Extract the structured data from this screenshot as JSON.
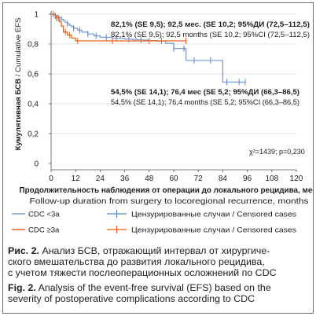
{
  "chart_data": {
    "type": "line",
    "y_axis_title_ru": "Кумулятивная БСВ",
    "y_axis_title_en": "Cumulative EFS",
    "y_axis_separator": " / ",
    "x_axis_title_ru": "Продолжительность наблюдения от операции до локального рецидива, мес.",
    "x_axis_title_en": "Follow-up duration from surgery to locoregional recurrence, months",
    "x_ticks": [
      0,
      12,
      24,
      36,
      48,
      60,
      72,
      84,
      96,
      108,
      120
    ],
    "y_ticks": [
      0,
      0.2,
      0.4,
      0.6,
      0.8,
      1
    ],
    "y_tick_labels": [
      "0",
      "0,2",
      "0,4",
      "0,6",
      "0,8",
      "1"
    ],
    "xlim": [
      0,
      120
    ],
    "ylim": [
      0,
      1
    ],
    "grid": "horizontal",
    "series": [
      {
        "name": "CDC <3a",
        "color": "#7fa0d4",
        "censor_color": "#5b86c8",
        "x": [
          0,
          1,
          2,
          3,
          4,
          5,
          6,
          7,
          8,
          9,
          10,
          11,
          13,
          15,
          18,
          21,
          24,
          30,
          36,
          40,
          44,
          48,
          52,
          56,
          60,
          66,
          72,
          78,
          84,
          90,
          95
        ],
        "y": [
          1,
          0.996,
          0.99,
          0.983,
          0.975,
          0.965,
          0.955,
          0.944,
          0.935,
          0.925,
          0.915,
          0.905,
          0.893,
          0.88,
          0.867,
          0.855,
          0.845,
          0.838,
          0.833,
          0.829,
          0.826,
          0.823,
          0.82,
          0.805,
          0.77,
          0.69,
          0.69,
          0.69,
          0.545,
          0.545,
          0.545
        ],
        "censored": [
          2,
          5,
          8,
          11,
          14,
          18,
          22,
          27,
          32,
          38,
          44,
          54,
          60,
          65,
          70,
          78,
          86,
          92,
          95
        ]
      },
      {
        "name": "CDC ≥3a",
        "color": "#e8641e",
        "censor_color": "#e8641e",
        "x": [
          0,
          2,
          4,
          5,
          6,
          8,
          10,
          12,
          30,
          48,
          66
        ],
        "y": [
          1,
          0.975,
          0.95,
          0.92,
          0.88,
          0.86,
          0.84,
          0.821,
          0.821,
          0.821,
          0.821
        ],
        "censored": [
          1,
          2.5,
          3.5,
          7,
          9,
          13,
          30,
          48,
          66
        ]
      }
    ],
    "annotations": [
      {
        "ru": "82,1% (SE 9,5); 92,5 мес. (SE 10,2; 95%ДИ (72,5–112,5)",
        "en": "82,1% (SE 9,5); 92,5 months (SE 10,2; 95%CI (72,5–112,5)"
      },
      {
        "ru": "54,5% (SE 14,1); 76,4 мес (SE 5,2; 95%ДИ (66,3–86,5)",
        "en": "54,5% (SE 14,1); 76,4 months (SE 5,2; 95%CI (66,3–86,5)"
      }
    ],
    "stat": "χ²=1439; p=0,230",
    "legend": [
      {
        "label": "CDC <3a",
        "censored_label": "Цензурированные случаи / Censored cases"
      },
      {
        "label": "CDC ≥3a",
        "censored_label": "Цензурированные случаи / Censored cases"
      }
    ]
  },
  "caption": {
    "ru_label": "Рис. 2.",
    "ru_lines": [
      "Анализ БСВ, отражающий интервал от хирургиче-",
      "ского вмешательства до развития локального рецидива,",
      "с учетом тяжести послеоперационных осложнений по CDC"
    ],
    "en_label": "Fig. 2.",
    "en_lines": [
      "Analysis of the event-free survival (EFS) based on the",
      "severity of postoperative complications according to CDC"
    ]
  }
}
